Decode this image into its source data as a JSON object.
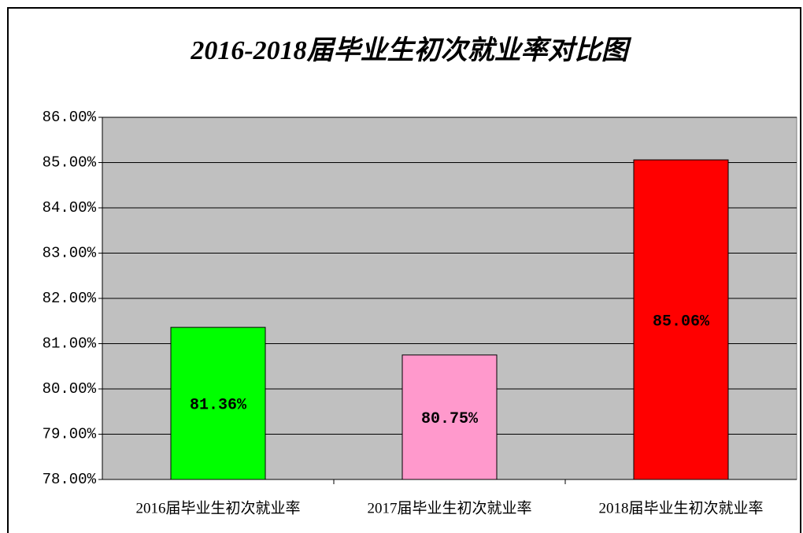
{
  "chart_data": {
    "type": "bar",
    "title": "2016-2018届毕业生初次就业率对比图",
    "categories": [
      "2016届毕业生初次就业率",
      "2017届毕业生初次就业率",
      "2018届毕业生初次就业率"
    ],
    "values": [
      81.36,
      80.75,
      85.06
    ],
    "value_labels": [
      "81.36%",
      "80.75%",
      "85.06%"
    ],
    "colors": [
      "#00ff00",
      "#ff99cc",
      "#ff0000"
    ],
    "ylim": [
      78,
      86
    ],
    "yticks": [
      {
        "value": 78,
        "label": "78.00%"
      },
      {
        "value": 79,
        "label": "79.00%"
      },
      {
        "value": 80,
        "label": "80.00%"
      },
      {
        "value": 81,
        "label": "81.00%"
      },
      {
        "value": 82,
        "label": "82.00%"
      },
      {
        "value": 83,
        "label": "83.00%"
      },
      {
        "value": 84,
        "label": "84.00%"
      },
      {
        "value": 85,
        "label": "85.00%"
      },
      {
        "value": 86,
        "label": "86.00%"
      }
    ],
    "grid": true,
    "plot_background": "#c0c0c0"
  }
}
